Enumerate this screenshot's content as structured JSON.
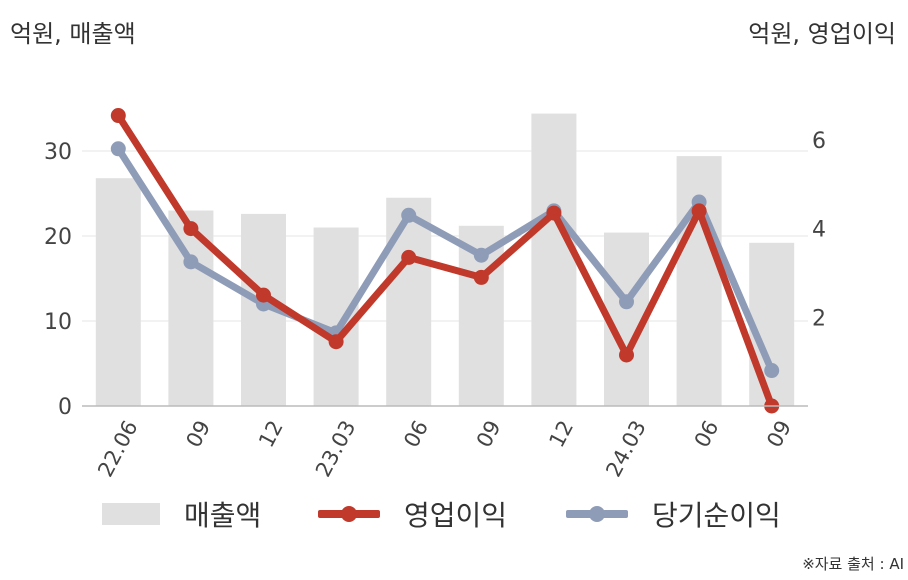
{
  "unit_left": "억원, 매출액",
  "unit_right": "억원, 영업이익",
  "source": "※자료 출처 : AI",
  "colors": {
    "revenue": "#e0e0e0",
    "operating_profit": "#c0392b",
    "net_profit": "#8e9cb8",
    "grid": "#e6e6e6",
    "axis": "#bbbbbb"
  },
  "chart_data": {
    "type": "bar",
    "categories": [
      "22.06",
      "09",
      "12",
      "23.03",
      "06",
      "09",
      "12",
      "24.03",
      "06",
      "09"
    ],
    "y_left": {
      "ticks": [
        0,
        10,
        20,
        30
      ],
      "range": [
        0,
        36
      ]
    },
    "y_right": {
      "ticks": [
        2,
        4,
        6
      ],
      "range": [
        0,
        6.9
      ]
    },
    "series": [
      {
        "name": "매출액",
        "type": "bar",
        "axis": "left",
        "values": [
          26.8,
          23.0,
          22.6,
          21.0,
          24.5,
          21.2,
          34.4,
          20.4,
          29.4,
          19.2
        ]
      },
      {
        "name": "영업이익",
        "type": "line",
        "axis": "right",
        "values": [
          6.55,
          4.0,
          2.5,
          1.45,
          3.35,
          2.9,
          4.35,
          1.15,
          4.4,
          0.0
        ]
      },
      {
        "name": "당기순이익",
        "type": "line",
        "axis": "right",
        "values": [
          5.8,
          3.25,
          2.3,
          1.65,
          4.3,
          3.4,
          4.4,
          2.35,
          4.6,
          0.8
        ]
      }
    ]
  }
}
